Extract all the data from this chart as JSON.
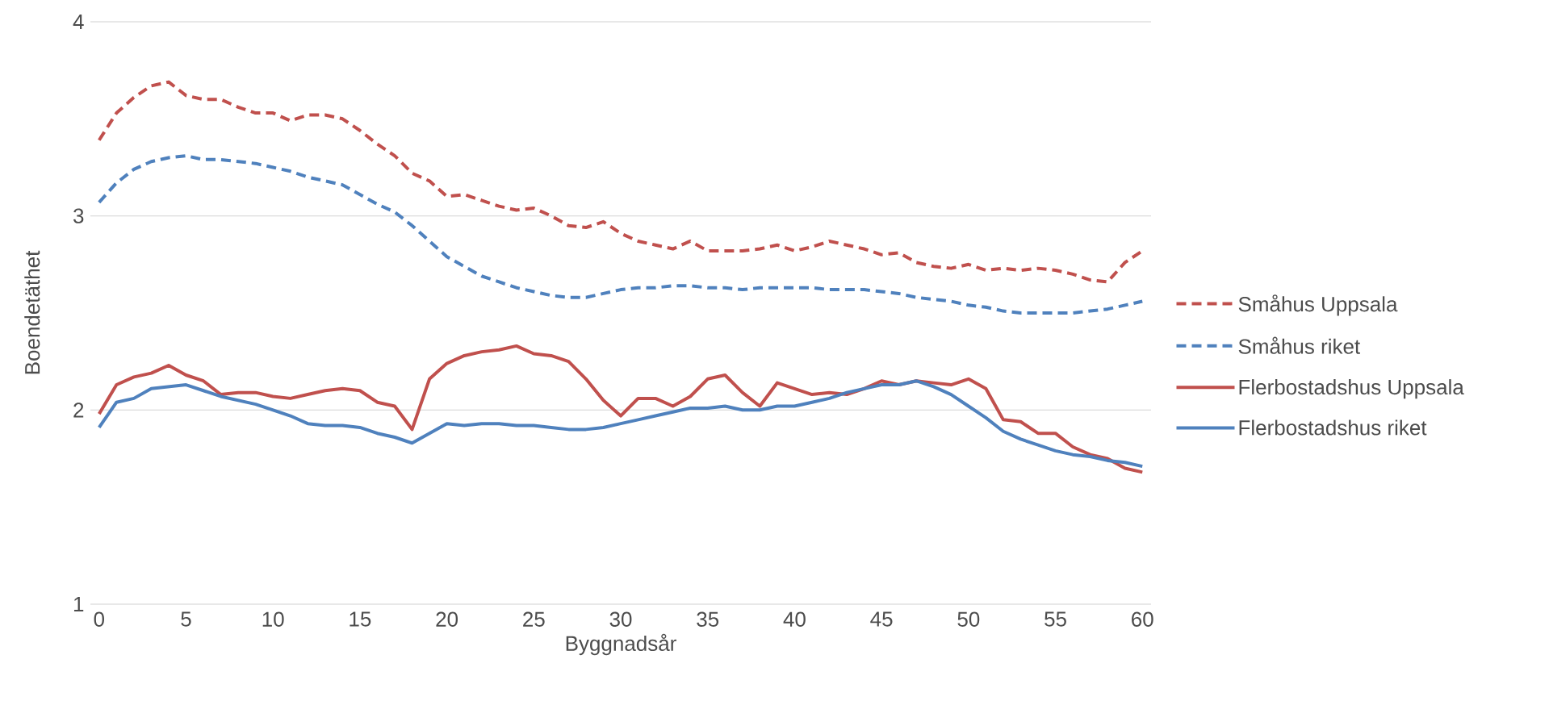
{
  "chart_data": {
    "type": "line",
    "xlabel": "Byggnadsår",
    "ylabel": "Boendetäthet",
    "x": [
      0,
      1,
      2,
      3,
      4,
      5,
      6,
      7,
      8,
      9,
      10,
      11,
      12,
      13,
      14,
      15,
      16,
      17,
      18,
      19,
      20,
      21,
      22,
      23,
      24,
      25,
      26,
      27,
      28,
      29,
      30,
      31,
      32,
      33,
      34,
      35,
      36,
      37,
      38,
      39,
      40,
      41,
      42,
      43,
      44,
      45,
      46,
      47,
      48,
      49,
      50,
      51,
      52,
      53,
      54,
      55,
      56,
      57,
      58,
      59,
      60
    ],
    "xlim": [
      -0.5,
      60.5
    ],
    "xticks": [
      0,
      5,
      10,
      15,
      20,
      25,
      30,
      35,
      40,
      45,
      50,
      55,
      60
    ],
    "ylim": [
      1,
      4
    ],
    "yticks": [
      1,
      2,
      3,
      4
    ],
    "grid": "y",
    "legend": "right",
    "marker": "none",
    "series": [
      {
        "name": "Småhus Uppsala",
        "color": "#c0504d",
        "line_style": "dashed",
        "values": [
          3.39,
          3.53,
          3.61,
          3.67,
          3.69,
          3.62,
          3.6,
          3.6,
          3.56,
          3.53,
          3.53,
          3.49,
          3.52,
          3.52,
          3.5,
          3.44,
          3.37,
          3.31,
          3.22,
          3.18,
          3.1,
          3.11,
          3.08,
          3.05,
          3.03,
          3.04,
          3.0,
          2.95,
          2.94,
          2.97,
          2.91,
          2.87,
          2.85,
          2.83,
          2.87,
          2.82,
          2.82,
          2.82,
          2.83,
          2.85,
          2.82,
          2.84,
          2.87,
          2.85,
          2.83,
          2.8,
          2.81,
          2.76,
          2.74,
          2.73,
          2.75,
          2.72,
          2.73,
          2.72,
          2.73,
          2.72,
          2.7,
          2.67,
          2.66,
          2.76,
          2.82
        ]
      },
      {
        "name": "Småhus riket",
        "color": "#4f81bd",
        "line_style": "dashed",
        "values": [
          3.07,
          3.17,
          3.24,
          3.28,
          3.3,
          3.31,
          3.29,
          3.29,
          3.28,
          3.27,
          3.25,
          3.23,
          3.2,
          3.18,
          3.16,
          3.11,
          3.06,
          3.02,
          2.95,
          2.87,
          2.79,
          2.74,
          2.69,
          2.66,
          2.63,
          2.61,
          2.59,
          2.58,
          2.58,
          2.6,
          2.62,
          2.63,
          2.63,
          2.64,
          2.64,
          2.63,
          2.63,
          2.62,
          2.63,
          2.63,
          2.63,
          2.63,
          2.62,
          2.62,
          2.62,
          2.61,
          2.6,
          2.58,
          2.57,
          2.56,
          2.54,
          2.53,
          2.51,
          2.5,
          2.5,
          2.5,
          2.5,
          2.51,
          2.52,
          2.54,
          2.56
        ]
      },
      {
        "name": "Flerbostadshus Uppsala",
        "color": "#c0504d",
        "line_style": "solid",
        "values": [
          1.98,
          2.13,
          2.17,
          2.19,
          2.23,
          2.18,
          2.15,
          2.08,
          2.09,
          2.09,
          2.07,
          2.06,
          2.08,
          2.1,
          2.11,
          2.1,
          2.04,
          2.02,
          1.9,
          2.16,
          2.24,
          2.28,
          2.3,
          2.31,
          2.33,
          2.29,
          2.28,
          2.25,
          2.16,
          2.05,
          1.97,
          2.06,
          2.06,
          2.02,
          2.07,
          2.16,
          2.18,
          2.09,
          2.02,
          2.14,
          2.11,
          2.08,
          2.09,
          2.08,
          2.11,
          2.15,
          2.13,
          2.15,
          2.14,
          2.13,
          2.16,
          2.11,
          1.95,
          1.94,
          1.88,
          1.88,
          1.81,
          1.77,
          1.75,
          1.7,
          1.68
        ]
      },
      {
        "name": "Flerbostadshus riket",
        "color": "#4f81bd",
        "line_style": "solid",
        "values": [
          1.91,
          2.04,
          2.06,
          2.11,
          2.12,
          2.13,
          2.1,
          2.07,
          2.05,
          2.03,
          2.0,
          1.97,
          1.93,
          1.92,
          1.92,
          1.91,
          1.88,
          1.86,
          1.83,
          1.88,
          1.93,
          1.92,
          1.93,
          1.93,
          1.92,
          1.92,
          1.91,
          1.9,
          1.9,
          1.91,
          1.93,
          1.95,
          1.97,
          1.99,
          2.01,
          2.01,
          2.02,
          2.0,
          2.0,
          2.02,
          2.02,
          2.04,
          2.06,
          2.09,
          2.11,
          2.13,
          2.13,
          2.15,
          2.12,
          2.08,
          2.02,
          1.96,
          1.89,
          1.85,
          1.82,
          1.79,
          1.77,
          1.76,
          1.74,
          1.73,
          1.71
        ]
      }
    ]
  }
}
